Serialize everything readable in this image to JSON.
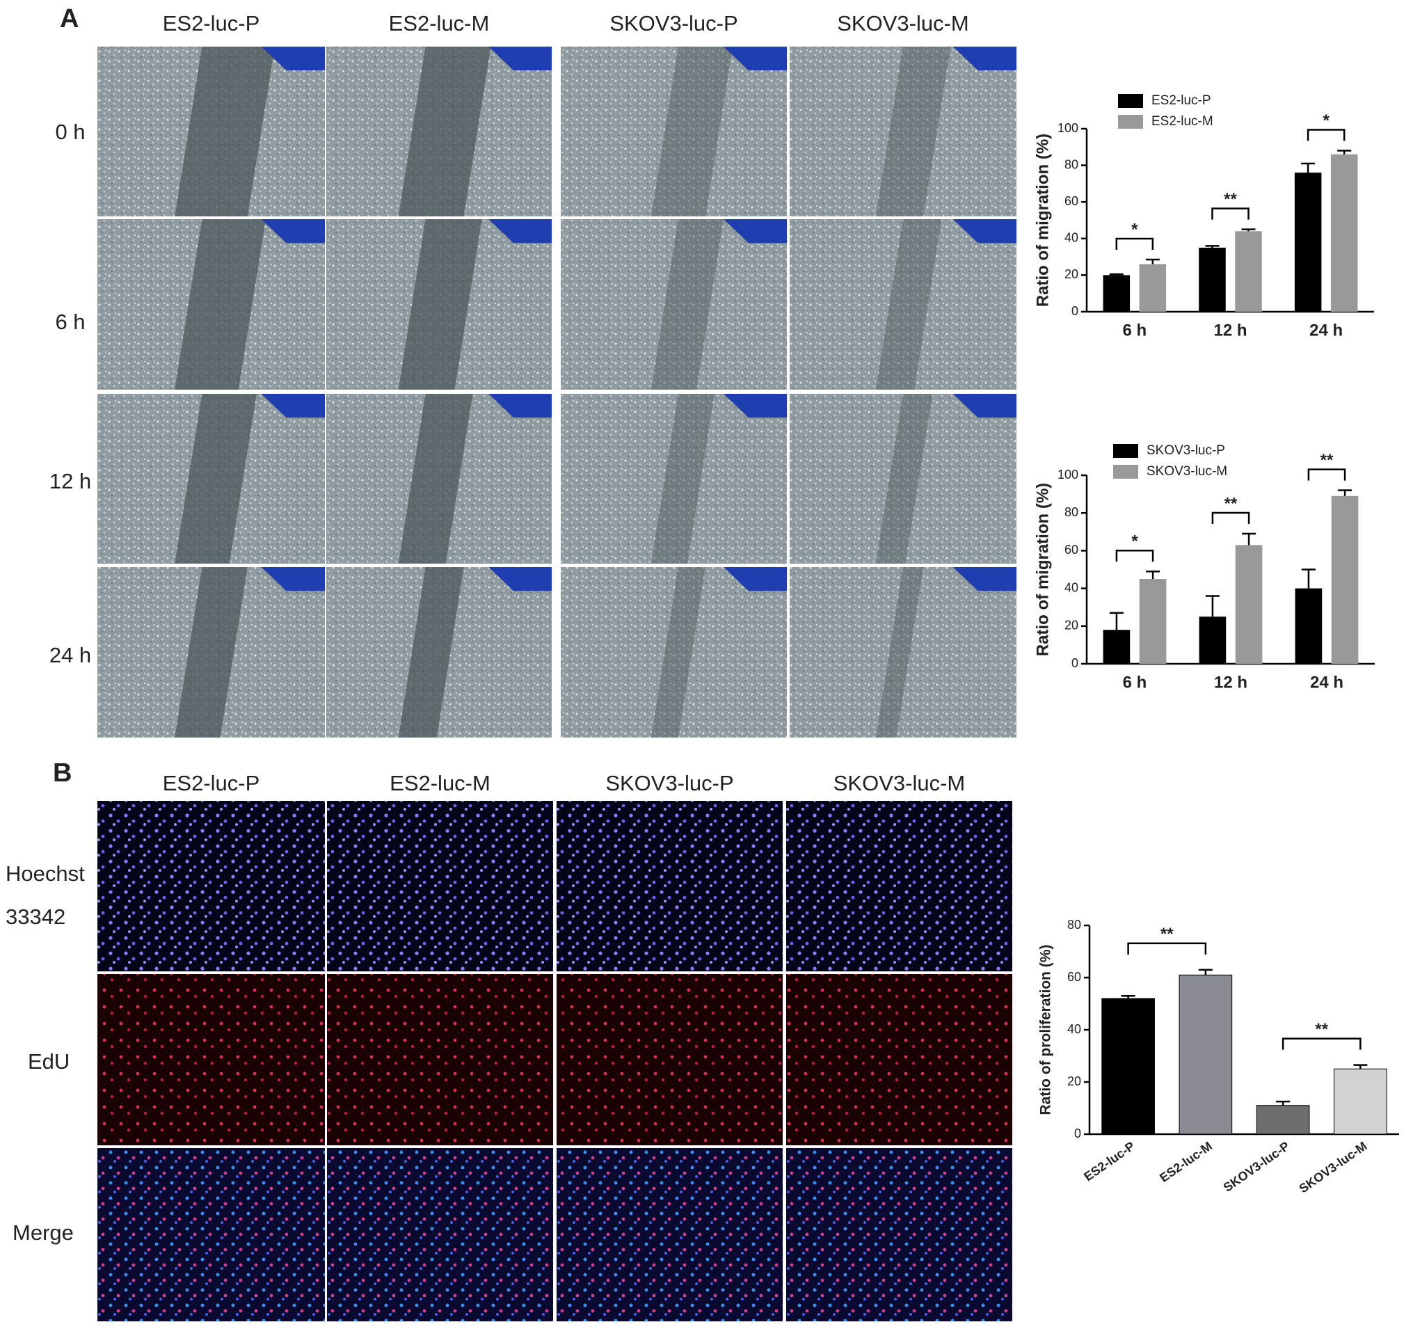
{
  "panel_a": {
    "label": "A",
    "columns": [
      "ES2-luc-P",
      "ES2-luc-M",
      "SKOV3-luc-P",
      "SKOV3-luc-M"
    ],
    "rows": [
      "0 h",
      "6 h",
      "12 h",
      "24 h"
    ]
  },
  "panel_b": {
    "label": "B",
    "columns": [
      "ES2-luc-P",
      "ES2-luc-M",
      "SKOV3-luc-P",
      "SKOV3-luc-M"
    ],
    "rows": [
      "Hoechst 33342",
      "EdU",
      "Merge"
    ]
  },
  "chart_data": [
    {
      "type": "bar",
      "ylabel": "Ratio of migration (%)",
      "categories": [
        "6 h",
        "12 h",
        "24 h"
      ],
      "series": [
        {
          "name": "ES2-luc-P",
          "color": "#000000",
          "values": [
            20,
            35,
            76
          ],
          "errors": [
            0.5,
            1,
            5
          ]
        },
        {
          "name": "ES2-luc-M",
          "color": "#999999",
          "values": [
            26,
            44,
            86
          ],
          "errors": [
            2.5,
            1,
            2
          ]
        }
      ],
      "annotations": [
        "*",
        "**",
        "*"
      ],
      "ylim": [
        0,
        100
      ],
      "yticks": [
        0,
        20,
        40,
        60,
        80,
        100
      ],
      "legend": "top-left"
    },
    {
      "type": "bar",
      "ylabel": "Ratio of migration (%)",
      "categories": [
        "6 h",
        "12 h",
        "24 h"
      ],
      "series": [
        {
          "name": "SKOV3-luc-P",
          "color": "#000000",
          "values": [
            18,
            25,
            40
          ],
          "errors": [
            9,
            11,
            10
          ]
        },
        {
          "name": "SKOV3-luc-M",
          "color": "#999999",
          "values": [
            45,
            63,
            89
          ],
          "errors": [
            4,
            6,
            3
          ]
        }
      ],
      "annotations": [
        "*",
        "**",
        "**"
      ],
      "ylim": [
        0,
        100
      ],
      "yticks": [
        0,
        20,
        40,
        60,
        80,
        100
      ],
      "legend": "top-left"
    },
    {
      "type": "bar",
      "ylabel": "Ratio of proliferation (%)",
      "categories": [
        "ES2-luc-P",
        "ES2-luc-M",
        "SKOV3-luc-P",
        "SKOV3-luc-M"
      ],
      "values": [
        52,
        61,
        11,
        25
      ],
      "errors": [
        1,
        2,
        1.5,
        1.5
      ],
      "colors": [
        "#000000",
        "#8b8b93",
        "#6e6e6e",
        "#d2d2d2"
      ],
      "annotations": [
        "**",
        "**"
      ],
      "ylim": [
        0,
        80
      ],
      "yticks": [
        0,
        20,
        40,
        60,
        80
      ]
    }
  ]
}
